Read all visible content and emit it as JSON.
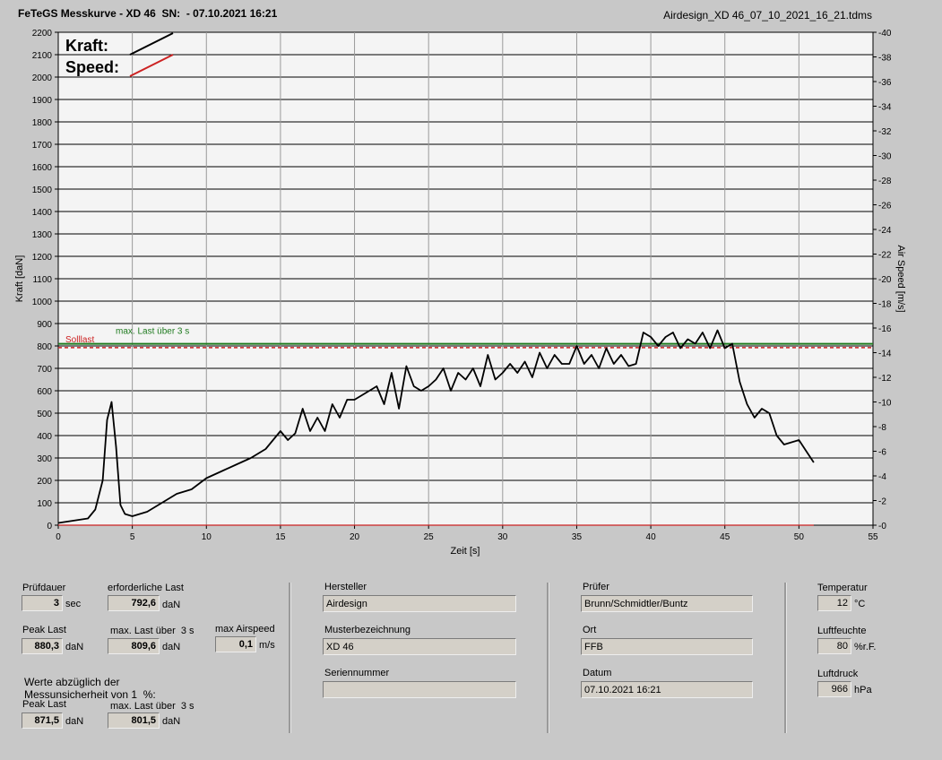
{
  "header": {
    "title": "FeTeGS Messkurve - XD 46  SN:  - 07.10.2021 16:21",
    "filename": "Airdesign_XD 46_07_10_2021_16_21.tdms"
  },
  "chart_data": {
    "type": "line",
    "xlabel": "Zeit [s]",
    "ylabel": "Kraft [daN]",
    "y2label": "Air Speed [m/s]",
    "xlim": [
      0,
      55
    ],
    "ylim": [
      0,
      2200
    ],
    "y2lim": [
      0,
      40
    ],
    "x_ticks": [
      0,
      5,
      10,
      15,
      20,
      25,
      30,
      35,
      40,
      45,
      50,
      55
    ],
    "y_ticks": [
      0,
      100,
      200,
      300,
      400,
      500,
      600,
      700,
      800,
      900,
      1000,
      1100,
      1200,
      1300,
      1400,
      1500,
      1600,
      1700,
      1800,
      1900,
      2000,
      2100,
      2200
    ],
    "y2_ticks": [
      0,
      2,
      4,
      6,
      8,
      10,
      12,
      14,
      16,
      18,
      20,
      22,
      24,
      26,
      28,
      30,
      32,
      34,
      36,
      38,
      40
    ],
    "grid": true,
    "legend": {
      "position": "top-left",
      "kraft_label": "Kraft:",
      "speed_label": "Speed:"
    },
    "reference_lines": [
      {
        "name": "Solllast",
        "value": 792.6,
        "color": "#cc2222",
        "style": "dashed"
      },
      {
        "name": "max. Last über  3 s",
        "value": 809.6,
        "color": "#1e7a1e",
        "style": "solid"
      }
    ],
    "series": [
      {
        "name": "Kraft",
        "color": "#000000",
        "x": [
          0,
          1,
          2,
          2.5,
          3,
          3.3,
          3.6,
          3.9,
          4.2,
          4.5,
          5,
          6,
          7,
          8,
          9,
          10,
          11,
          12,
          13,
          14,
          15,
          15.5,
          16,
          16.5,
          17,
          17.5,
          18,
          18.5,
          19,
          19.5,
          20,
          20.5,
          21,
          21.5,
          22,
          22.5,
          23,
          23.5,
          24,
          24.5,
          25,
          25.5,
          26,
          26.5,
          27,
          27.5,
          28,
          28.5,
          29,
          29.5,
          30,
          30.5,
          31,
          31.5,
          32,
          32.5,
          33,
          33.5,
          34,
          34.5,
          35,
          35.5,
          36,
          36.5,
          37,
          37.5,
          38,
          38.5,
          39,
          39.5,
          40,
          40.5,
          41,
          41.5,
          42,
          42.5,
          43,
          43.5,
          44,
          44.5,
          45,
          45.5,
          46,
          46.5,
          47,
          47.5,
          48,
          48.5,
          49,
          49.5,
          50,
          50.5,
          51
        ],
        "y": [
          10,
          20,
          30,
          70,
          200,
          470,
          550,
          350,
          90,
          50,
          40,
          60,
          100,
          140,
          160,
          210,
          240,
          270,
          300,
          340,
          420,
          380,
          410,
          520,
          420,
          480,
          420,
          540,
          480,
          560,
          560,
          580,
          600,
          620,
          540,
          680,
          520,
          710,
          620,
          600,
          620,
          650,
          700,
          600,
          680,
          650,
          700,
          620,
          760,
          650,
          680,
          720,
          680,
          730,
          660,
          770,
          700,
          760,
          720,
          720,
          800,
          720,
          760,
          700,
          790,
          720,
          760,
          710,
          720,
          860,
          840,
          800,
          840,
          860,
          790,
          830,
          810,
          860,
          790,
          870,
          790,
          810,
          640,
          540,
          480,
          520,
          500,
          400,
          360,
          370,
          380,
          330,
          280
        ],
        "axis": "left"
      },
      {
        "name": "Speed",
        "color": "#cc2222",
        "x": [
          0,
          51
        ],
        "y": [
          0,
          0
        ],
        "axis": "right"
      }
    ]
  },
  "panel1": {
    "pruefdauer_label": "Prüfdauer",
    "pruefdauer_value": "3",
    "pruefdauer_unit": "sec",
    "erf_last_label": "erforderliche Last",
    "erf_last_value": "792,6",
    "erf_last_unit": "daN",
    "peak_label": "Peak Last",
    "peak_value": "880,3",
    "peak_unit": "daN",
    "maxlast_label": "max. Last über  3 s",
    "maxlast_value": "809,6",
    "maxlast_unit": "daN",
    "airspeed_label": "max Airspeed",
    "airspeed_value": "0,1",
    "airspeed_unit": "m/s",
    "note_line1": "Werte abzüglich der",
    "note_line2": "Messunsicherheit von 1  %:",
    "peak2_label": "Peak Last",
    "peak2_value": "871,5",
    "peak2_unit": "daN",
    "maxlast2_label": "max. Last über  3 s",
    "maxlast2_value": "801,5",
    "maxlast2_unit": "daN"
  },
  "panel2": {
    "hersteller_label": "Hersteller",
    "hersteller_value": "Airdesign",
    "muster_label": "Musterbezeichnung",
    "muster_value": "XD 46",
    "serien_label": "Seriennummer",
    "serien_value": ""
  },
  "panel3": {
    "pruefer_label": "Prüfer",
    "pruefer_value": "Brunn/Schmidtler/Buntz",
    "ort_label": "Ort",
    "ort_value": "FFB",
    "datum_label": "Datum",
    "datum_value": "07.10.2021 16:21"
  },
  "panel4": {
    "temp_label": "Temperatur",
    "temp_value": "12",
    "temp_unit": "°C",
    "feuchte_label": "Luftfeuchte",
    "feuchte_value": "80",
    "feuchte_unit": "%r.F.",
    "druck_label": "Luftdruck",
    "druck_value": "966",
    "druck_unit": "hPa"
  }
}
